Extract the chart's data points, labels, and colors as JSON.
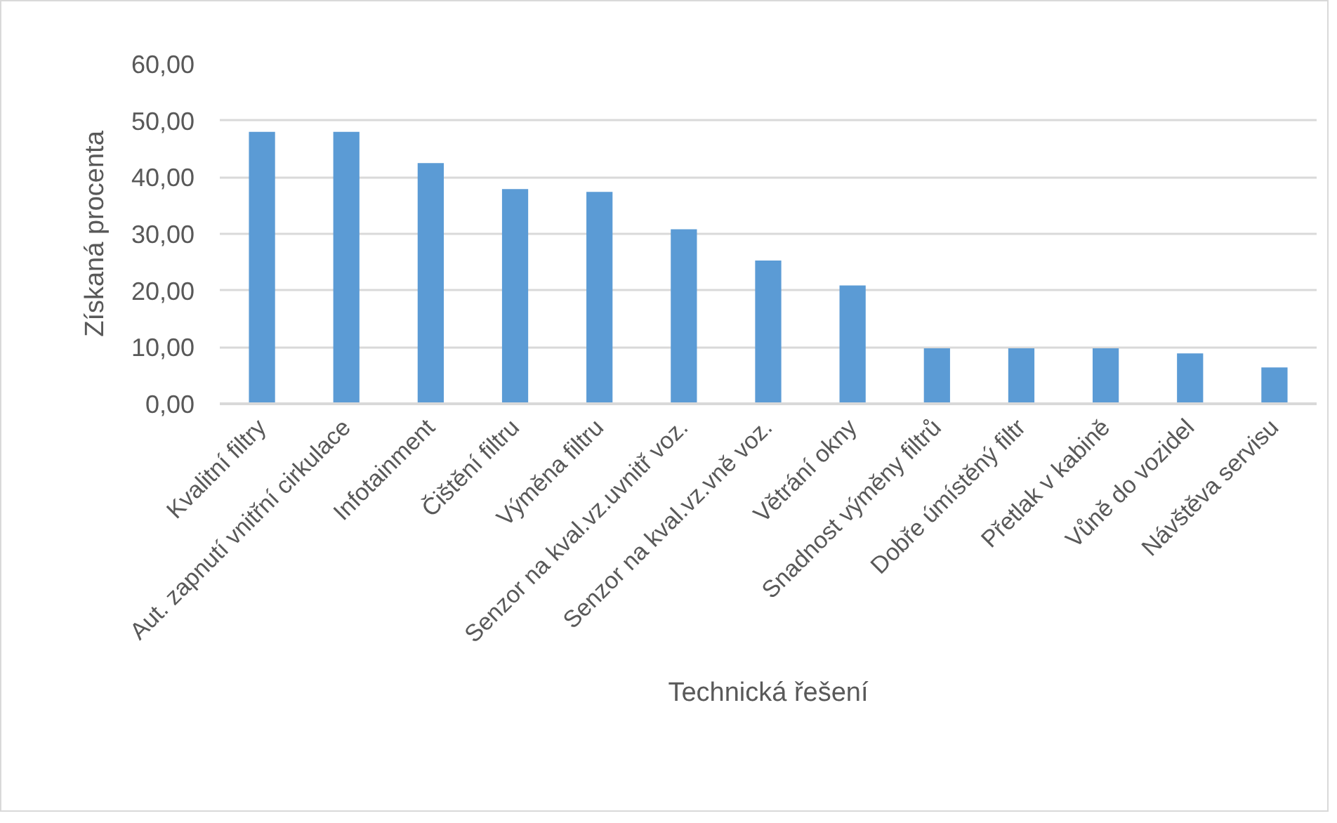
{
  "chart_data": {
    "type": "bar",
    "xlabel": "Technická řešení",
    "ylabel": "Získaná procenta",
    "categories": [
      "Kvalitní filtry",
      "Aut. zapnutí vnitřní cirkulace",
      "Infotainment",
      "Čištění filtru",
      "Výměna filtru",
      "Senzor na kval.vz.uvnitř voz.",
      "Senzor na kval.vz.vně voz.",
      "Větrání okny",
      "Snadnost výměny filtrů",
      "Dobře úmístěný filtr",
      "Přetlak v kabině",
      "Vůně do vozidel",
      "Návštěva servisu"
    ],
    "values": [
      48.0,
      48.0,
      42.5,
      37.9,
      37.4,
      30.8,
      25.3,
      20.9,
      9.8,
      9.8,
      9.8,
      8.9,
      6.4
    ],
    "color": "#5b9bd5",
    "ylim": [
      0,
      60
    ],
    "yticks": [
      {
        "value": 0,
        "label": "0,00"
      },
      {
        "value": 10,
        "label": "10,00"
      },
      {
        "value": 20,
        "label": "20,00"
      },
      {
        "value": 30,
        "label": "30,00"
      },
      {
        "value": 40,
        "label": "40,00"
      },
      {
        "value": 50,
        "label": "50,00"
      },
      {
        "value": 60,
        "label": "60,00"
      }
    ],
    "grid": "y"
  }
}
